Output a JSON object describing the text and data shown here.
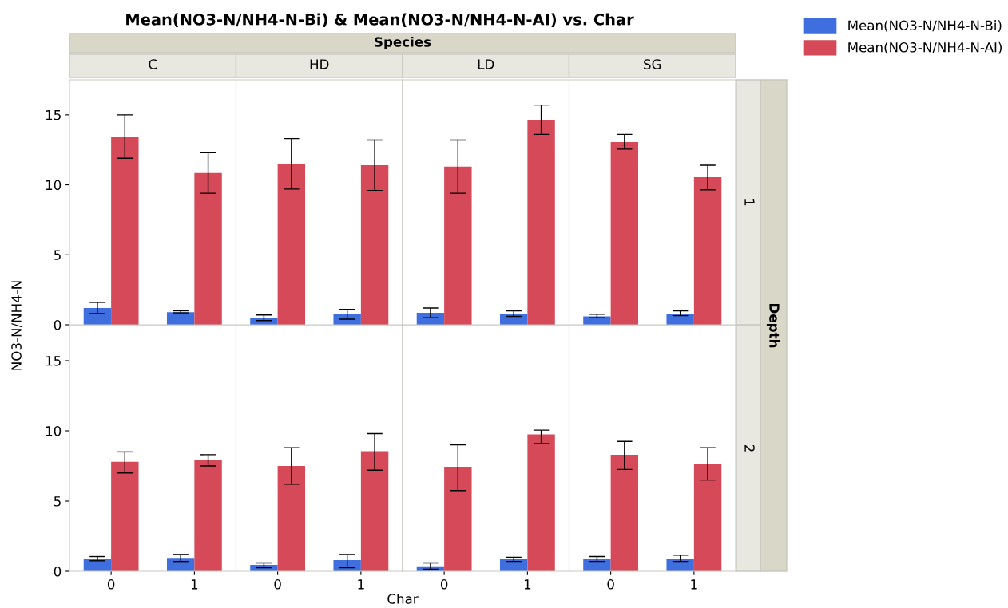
{
  "chart_data": [
    {
      "type": "bar",
      "title": "C",
      "ylabel": "NO3-N/NH4-N",
      "annotations": [
        "Mean(NO3-N/NH4-N-Bi) & Mean(NO3-N/NH4-N-AI) vs. Char",
        "Species",
        "Depth",
        "Char"
      ],
      "categories": [
        "0",
        "1"
      ],
      "ylim": [
        0,
        17.5
      ],
      "yticks": [
        0,
        5,
        10,
        15
      ],
      "tick_labels": "y",
      "legend": "right",
      "series": [
        {
          "name": "Mean(NO3-N/NH4-N-Bi)",
          "color": "#3f6fde",
          "values": [
            1.2,
            0.9
          ],
          "errors": [
            [
              0.8,
              1.6
            ],
            [
              0.85,
              1.0
            ]
          ]
        },
        {
          "name": "Mean(NO3-N/NH4-N-AI)",
          "color": "#d64958",
          "values": [
            13.4,
            10.85
          ],
          "errors": [
            [
              11.9,
              15.0
            ],
            [
              9.4,
              12.3
            ]
          ]
        }
      ]
    },
    {
      "type": "bar",
      "title": "HD",
      "categories": [
        "0",
        "1"
      ],
      "ylim": [
        0,
        17.5
      ],
      "yticks": [
        0,
        5,
        10,
        15
      ],
      "tick_labels": false,
      "series": [
        {
          "color": "#3f6fde",
          "values": [
            0.5,
            0.75
          ],
          "errors": [
            [
              0.3,
              0.7
            ],
            [
              0.4,
              1.1
            ]
          ]
        },
        {
          "color": "#d64958",
          "values": [
            11.5,
            11.4
          ],
          "errors": [
            [
              9.7,
              13.3
            ],
            [
              9.6,
              13.2
            ]
          ]
        }
      ]
    },
    {
      "type": "bar",
      "title": "LD",
      "categories": [
        "0",
        "1"
      ],
      "ylim": [
        0,
        17.5
      ],
      "yticks": [
        0,
        5,
        10,
        15
      ],
      "tick_labels": false,
      "series": [
        {
          "color": "#3f6fde",
          "values": [
            0.85,
            0.8
          ],
          "errors": [
            [
              0.5,
              1.2
            ],
            [
              0.6,
              1.0
            ]
          ]
        },
        {
          "color": "#d64958",
          "values": [
            11.3,
            14.65
          ],
          "errors": [
            [
              9.4,
              13.2
            ],
            [
              13.6,
              15.7
            ]
          ]
        }
      ]
    },
    {
      "type": "bar",
      "title": "SG",
      "y2label": "1",
      "categories": [
        "0",
        "1"
      ],
      "ylim": [
        0,
        17.5
      ],
      "yticks": [
        0,
        5,
        10,
        15
      ],
      "tick_labels": false,
      "series": [
        {
          "color": "#3f6fde",
          "values": [
            0.6,
            0.8
          ],
          "errors": [
            [
              0.5,
              0.75
            ],
            [
              0.65,
              1.0
            ]
          ]
        },
        {
          "color": "#d64958",
          "values": [
            13.05,
            10.55
          ],
          "errors": [
            [
              12.55,
              13.6
            ],
            [
              9.65,
              11.4
            ]
          ]
        }
      ]
    },
    {
      "type": "bar",
      "categories": [
        "0",
        "1"
      ],
      "ylim": [
        0,
        17.5
      ],
      "yticks": [
        0,
        5,
        10,
        15
      ],
      "series": [
        {
          "color": "#3f6fde",
          "values": [
            0.9,
            0.95
          ],
          "errors": [
            [
              0.75,
              1.05
            ],
            [
              0.7,
              1.2
            ]
          ]
        },
        {
          "color": "#d64958",
          "values": [
            7.8,
            7.95
          ],
          "errors": [
            [
              7.0,
              8.5
            ],
            [
              7.5,
              8.3
            ]
          ]
        }
      ]
    },
    {
      "type": "bar",
      "categories": [
        "0",
        "1"
      ],
      "ylim": [
        0,
        17.5
      ],
      "yticks": [
        0,
        5,
        10,
        15
      ],
      "tick_labels": "x",
      "series": [
        {
          "color": "#3f6fde",
          "values": [
            0.45,
            0.8
          ],
          "errors": [
            [
              0.25,
              0.6
            ],
            [
              0.25,
              1.2
            ]
          ]
        },
        {
          "color": "#d64958",
          "values": [
            7.5,
            8.55
          ],
          "errors": [
            [
              6.2,
              8.8
            ],
            [
              7.2,
              9.8
            ]
          ]
        }
      ]
    },
    {
      "type": "bar",
      "categories": [
        "0",
        "1"
      ],
      "ylim": [
        0,
        17.5
      ],
      "yticks": [
        0,
        5,
        10,
        15
      ],
      "tick_labels": "x",
      "series": [
        {
          "color": "#3f6fde",
          "values": [
            0.35,
            0.85
          ],
          "errors": [
            [
              0.15,
              0.6
            ],
            [
              0.7,
              1.0
            ]
          ]
        },
        {
          "color": "#d64958",
          "values": [
            7.45,
            9.75
          ],
          "errors": [
            [
              5.75,
              9.0
            ],
            [
              9.1,
              10.05
            ]
          ]
        }
      ]
    },
    {
      "type": "bar",
      "y2label": "2",
      "categories": [
        "0",
        "1"
      ],
      "ylim": [
        0,
        17.5
      ],
      "yticks": [
        0,
        5,
        10,
        15
      ],
      "tick_labels": "x",
      "series": [
        {
          "color": "#3f6fde",
          "values": [
            0.85,
            0.9
          ],
          "errors": [
            [
              0.7,
              1.05
            ],
            [
              0.7,
              1.15
            ]
          ]
        },
        {
          "color": "#d64958",
          "values": [
            8.3,
            7.65
          ],
          "errors": [
            [
              7.25,
              9.25
            ],
            [
              6.5,
              8.8
            ]
          ]
        }
      ]
    }
  ]
}
